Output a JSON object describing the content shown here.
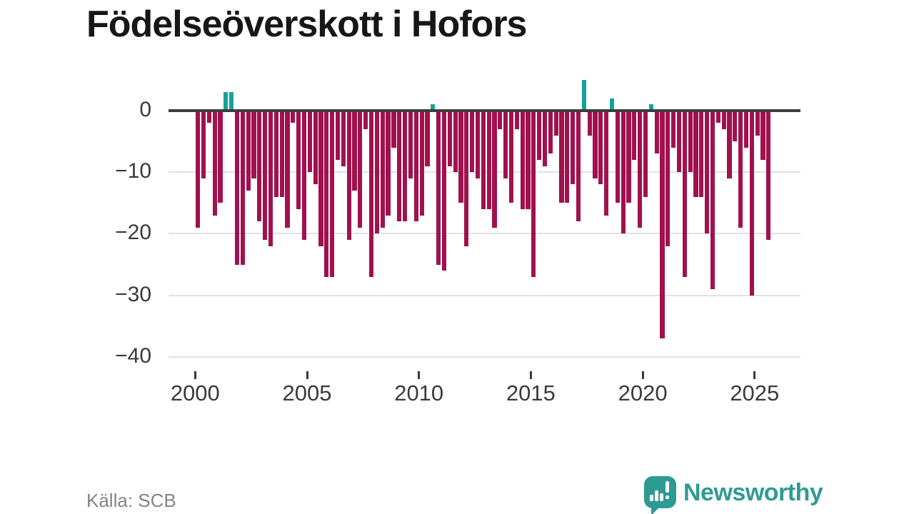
{
  "header": {
    "title": "Födelseöverskott i Hofors"
  },
  "footer": {
    "source": "Källa: SCB",
    "logo_text": "Newsworthy"
  },
  "chart_data": {
    "type": "bar",
    "title": "Födelseöverskott i Hofors",
    "frequency": "quarterly",
    "start": "2000-Q1",
    "end": "2025-Q3",
    "values": [
      -19,
      -11,
      -2,
      -17,
      -15,
      3,
      3,
      -25,
      -25,
      -13,
      -11,
      -18,
      -21,
      -22,
      -14,
      -14,
      -19,
      -2,
      -16,
      -21,
      -10,
      -12,
      -22,
      -27,
      -27,
      -8,
      -9,
      -21,
      -13,
      -19,
      -3,
      -27,
      -20,
      -19,
      -17,
      -6,
      -18,
      -18,
      -11,
      -18,
      -17,
      -9,
      1,
      -25,
      -26,
      -9,
      -10,
      -15,
      -22,
      -10,
      -11,
      -16,
      -16,
      -19,
      -3,
      -11,
      -15,
      -3,
      -16,
      -16,
      -27,
      -8,
      -9,
      -7,
      -4,
      -15,
      -15,
      -12,
      -18,
      5,
      -4,
      -11,
      -12,
      -17,
      2,
      -15,
      -20,
      -15,
      -8,
      -19,
      -14,
      1,
      -7,
      -37,
      -22,
      -6,
      -10,
      -27,
      -10,
      -14,
      -14,
      -20,
      -29,
      -2,
      -3,
      -11,
      -5,
      -19,
      -6,
      -30,
      -4,
      -8,
      -21
    ],
    "xticks": [
      2000,
      2005,
      2010,
      2015,
      2020,
      2025
    ],
    "yticks": [
      {
        "v": 0,
        "label": "0"
      },
      {
        "v": -10,
        "label": "−10"
      },
      {
        "v": -20,
        "label": "−20"
      },
      {
        "v": -30,
        "label": "−30"
      },
      {
        "v": -40,
        "label": "−40"
      }
    ],
    "ylim": [
      -40,
      5
    ],
    "grid": true,
    "legend": null,
    "colors": {
      "negative": "#a1114e",
      "positive": "#16a29a",
      "axis_line": "#3c3c3c",
      "gridline": "#e1e1e1",
      "logo_teal": "#2e9b93"
    }
  }
}
